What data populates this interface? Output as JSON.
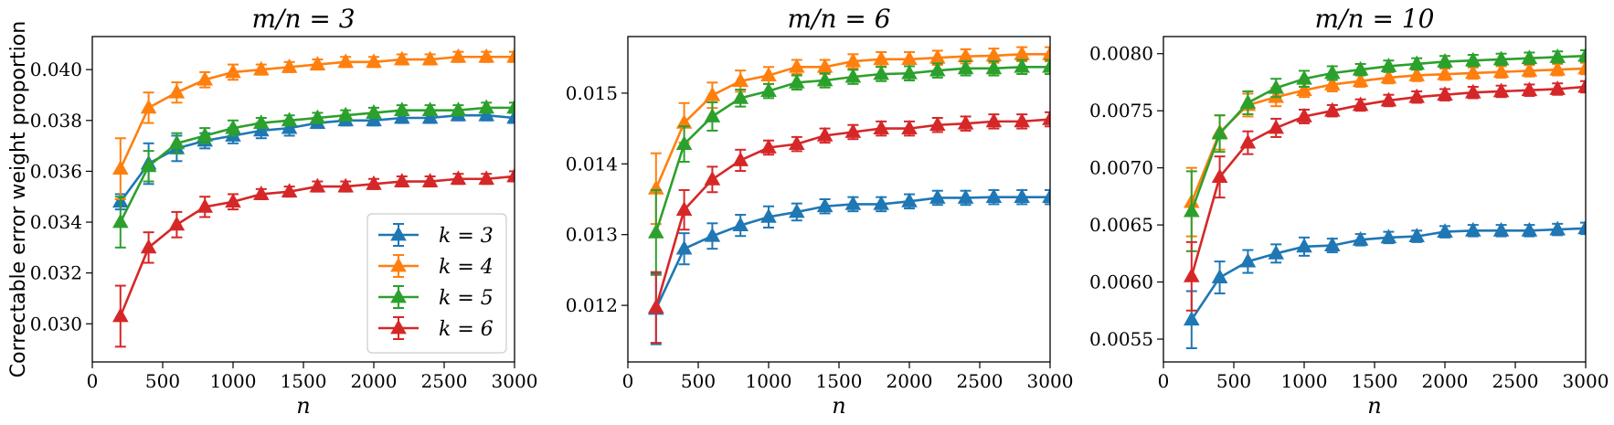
{
  "figure": {
    "ylabel": "Correctable error weight proportion",
    "legend": {
      "placement": "lower-right of first panel",
      "entries": [
        "k = 3",
        "k = 4",
        "k = 5",
        "k = 6"
      ]
    }
  },
  "colors": {
    "k3": "#1f77b4",
    "k4": "#ff7f0e",
    "k5": "#2ca02c",
    "k6": "#d62728"
  },
  "chart_data": [
    {
      "type": "line",
      "title": "m/n = 3",
      "xlabel": "n",
      "ylabel": "Correctable error weight proportion",
      "xlim": [
        0,
        3000
      ],
      "ylim": [
        0.0285,
        0.0413
      ],
      "xticks": [
        "0",
        "500",
        "1000",
        "1500",
        "2000",
        "2500",
        "3000"
      ],
      "yticks": [
        "0.030",
        "0.032",
        "0.034",
        "0.036",
        "0.038",
        "0.040"
      ],
      "x": [
        200,
        400,
        600,
        800,
        1000,
        1200,
        1400,
        1600,
        1800,
        2000,
        2200,
        2400,
        2600,
        2800,
        3000
      ],
      "series": [
        {
          "name": "k = 3",
          "color_key": "k3",
          "values": [
            0.0348,
            0.0363,
            0.0369,
            0.0372,
            0.0374,
            0.0376,
            0.0377,
            0.0379,
            0.038,
            0.038,
            0.0381,
            0.0381,
            0.0382,
            0.0382,
            0.0381
          ],
          "errors": [
            0.0003,
            0.0008,
            0.0005,
            0.0003,
            0.0003,
            0.0003,
            0.0003,
            0.0002,
            0.0002,
            0.0002,
            0.0002,
            0.0002,
            0.0002,
            0.0002,
            0.0002
          ]
        },
        {
          "name": "k = 4",
          "color_key": "k4",
          "values": [
            0.0361,
            0.0385,
            0.0391,
            0.0396,
            0.0399,
            0.04,
            0.0401,
            0.0402,
            0.0403,
            0.0403,
            0.0404,
            0.0404,
            0.0405,
            0.0405,
            0.0405
          ],
          "errors": [
            0.0012,
            0.0006,
            0.0004,
            0.0003,
            0.0003,
            0.0002,
            0.0002,
            0.0002,
            0.0002,
            0.0002,
            0.0002,
            0.0002,
            0.0002,
            0.0002,
            0.0002
          ]
        },
        {
          "name": "k = 5",
          "color_key": "k5",
          "values": [
            0.034,
            0.0362,
            0.0371,
            0.0374,
            0.0377,
            0.0379,
            0.038,
            0.0381,
            0.0382,
            0.0383,
            0.0384,
            0.0384,
            0.0384,
            0.0385,
            0.0385
          ],
          "errors": [
            0.001,
            0.0006,
            0.0004,
            0.0003,
            0.0003,
            0.0002,
            0.0002,
            0.0002,
            0.0002,
            0.0002,
            0.0002,
            0.0002,
            0.0002,
            0.0002,
            0.0002
          ]
        },
        {
          "name": "k = 6",
          "color_key": "k6",
          "values": [
            0.0303,
            0.033,
            0.0339,
            0.0346,
            0.0348,
            0.0351,
            0.0352,
            0.0354,
            0.0354,
            0.0355,
            0.0356,
            0.0356,
            0.0357,
            0.0357,
            0.0358
          ],
          "errors": [
            0.0012,
            0.0006,
            0.0005,
            0.0004,
            0.0003,
            0.0002,
            0.0002,
            0.0002,
            0.0002,
            0.0002,
            0.0002,
            0.0002,
            0.0002,
            0.0002,
            0.0002
          ]
        }
      ]
    },
    {
      "type": "line",
      "title": "m/n = 6",
      "xlabel": "n",
      "ylabel": "",
      "xlim": [
        0,
        3000
      ],
      "ylim": [
        0.0112,
        0.0158
      ],
      "xticks": [
        "0",
        "500",
        "1000",
        "1500",
        "2000",
        "2500",
        "3000"
      ],
      "yticks": [
        "0.012",
        "0.013",
        "0.014",
        "0.015"
      ],
      "x": [
        200,
        400,
        600,
        800,
        1000,
        1200,
        1400,
        1600,
        1800,
        2000,
        2200,
        2400,
        2600,
        2800,
        3000
      ],
      "series": [
        {
          "name": "k = 3",
          "color_key": "k3",
          "values": [
            0.01195,
            0.0128,
            0.01298,
            0.01313,
            0.01325,
            0.01332,
            0.0134,
            0.01343,
            0.01343,
            0.01347,
            0.01352,
            0.01352,
            0.01353,
            0.01353,
            0.01353
          ],
          "errors": [
            0.0005,
            0.00022,
            0.00018,
            0.00015,
            0.00015,
            0.00012,
            0.0001,
            0.0001,
            0.0001,
            0.0001,
            0.0001,
            0.0001,
            0.0001,
            0.0001,
            0.0001
          ]
        },
        {
          "name": "k = 4",
          "color_key": "k4",
          "values": [
            0.01365,
            0.01458,
            0.01497,
            0.01517,
            0.01525,
            0.01537,
            0.01537,
            0.01545,
            0.01548,
            0.01548,
            0.0155,
            0.01552,
            0.01553,
            0.01555,
            0.01555
          ],
          "errors": [
            0.0005,
            0.00028,
            0.00018,
            0.00015,
            0.00012,
            0.0001,
            0.0001,
            0.0001,
            0.0001,
            0.0001,
            0.0001,
            0.0001,
            0.0001,
            0.0001,
            0.0001
          ]
        },
        {
          "name": "k = 5",
          "color_key": "k5",
          "values": [
            0.01303,
            0.01428,
            0.01467,
            0.01493,
            0.01503,
            0.01515,
            0.01518,
            0.01523,
            0.01527,
            0.01528,
            0.01532,
            0.01535,
            0.01535,
            0.01537,
            0.01537
          ],
          "errors": [
            0.0006,
            0.00025,
            0.0002,
            0.00012,
            0.0001,
            0.0001,
            0.0001,
            0.0001,
            0.0001,
            0.0001,
            0.0001,
            0.0001,
            0.0001,
            0.0001,
            0.0001
          ]
        },
        {
          "name": "k = 6",
          "color_key": "k6",
          "values": [
            0.01197,
            0.01335,
            0.01378,
            0.01405,
            0.01423,
            0.01428,
            0.0144,
            0.01445,
            0.0145,
            0.0145,
            0.01455,
            0.01457,
            0.0146,
            0.0146,
            0.01463
          ],
          "errors": [
            0.0005,
            0.00028,
            0.00018,
            0.00015,
            0.0001,
            0.0001,
            0.0001,
            0.0001,
            0.0001,
            0.0001,
            0.0001,
            0.0001,
            0.0001,
            0.0001,
            0.0001
          ]
        }
      ]
    },
    {
      "type": "line",
      "title": "m/n = 10",
      "xlabel": "n",
      "ylabel": "",
      "xlim": [
        0,
        3000
      ],
      "ylim": [
        0.0053,
        0.00815
      ],
      "xticks": [
        "0",
        "500",
        "1000",
        "1500",
        "2000",
        "2500",
        "3000"
      ],
      "yticks": [
        "0.0055",
        "0.0060",
        "0.0065",
        "0.0070",
        "0.0075",
        "0.0080"
      ],
      "x": [
        200,
        400,
        600,
        800,
        1000,
        1200,
        1400,
        1600,
        1800,
        2000,
        2200,
        2400,
        2600,
        2800,
        3000
      ],
      "series": [
        {
          "name": "k = 3",
          "color_key": "k3",
          "values": [
            0.00567,
            0.00604,
            0.00618,
            0.00625,
            0.00631,
            0.00632,
            0.00637,
            0.00639,
            0.0064,
            0.00644,
            0.00645,
            0.00645,
            0.00645,
            0.00646,
            0.00647
          ],
          "errors": [
            0.00025,
            0.00014,
            0.0001,
            8e-05,
            8e-05,
            6e-05,
            5e-05,
            5e-05,
            5e-05,
            5e-05,
            5e-05,
            5e-05,
            5e-05,
            5e-05,
            5e-05
          ]
        },
        {
          "name": "k = 4",
          "color_key": "k4",
          "values": [
            0.0067,
            0.00731,
            0.00755,
            0.00762,
            0.00768,
            0.00773,
            0.00776,
            0.00779,
            0.00781,
            0.00782,
            0.00783,
            0.00784,
            0.00785,
            0.00786,
            0.00787
          ],
          "errors": [
            0.0003,
            0.00015,
            0.0001,
            8e-05,
            6e-05,
            6e-05,
            5e-05,
            5e-05,
            5e-05,
            5e-05,
            5e-05,
            5e-05,
            5e-05,
            5e-05,
            5e-05
          ]
        },
        {
          "name": "k = 5",
          "color_key": "k5",
          "values": [
            0.00662,
            0.0073,
            0.00757,
            0.0077,
            0.00778,
            0.00783,
            0.00786,
            0.00789,
            0.00791,
            0.00793,
            0.00794,
            0.00795,
            0.00796,
            0.00797,
            0.00798
          ],
          "errors": [
            0.00035,
            0.00016,
            0.0001,
            8e-05,
            7e-05,
            6e-05,
            5e-05,
            5e-05,
            5e-05,
            5e-05,
            5e-05,
            5e-05,
            5e-05,
            5e-05,
            5e-05
          ]
        },
        {
          "name": "k = 6",
          "color_key": "k6",
          "values": [
            0.00605,
            0.00692,
            0.00722,
            0.00735,
            0.00745,
            0.0075,
            0.00755,
            0.00759,
            0.00762,
            0.00764,
            0.00766,
            0.00767,
            0.00768,
            0.00769,
            0.00771
          ],
          "errors": [
            0.0003,
            0.00018,
            0.0001,
            8e-05,
            6e-05,
            5e-05,
            5e-05,
            5e-05,
            5e-05,
            5e-05,
            5e-05,
            5e-05,
            5e-05,
            5e-05,
            5e-05
          ]
        }
      ]
    }
  ]
}
